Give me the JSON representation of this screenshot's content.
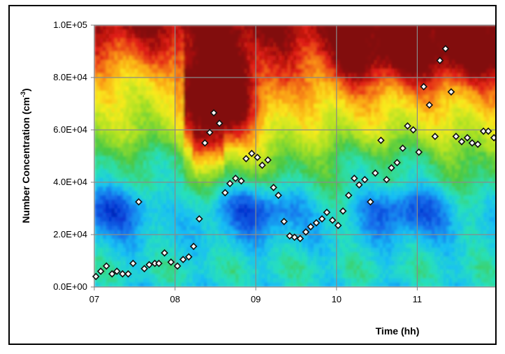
{
  "chart_data": {
    "type": "scatter",
    "title": "",
    "xlabel": "Time (hh)",
    "ylabel_main": "Number Concentration (cm",
    "ylabel_sup": "-3",
    "ylabel_end": ")",
    "xlim": [
      7,
      12
    ],
    "ylim": [
      0,
      100000
    ],
    "x_tick_labels": [
      "07",
      "08",
      "09",
      "10",
      "11"
    ],
    "x_ticks": [
      7,
      8,
      9,
      10,
      11
    ],
    "y_tick_labels": [
      "0.0E+00",
      "2.0E+04",
      "4.0E+04",
      "6.0E+04",
      "8.0E+04",
      "1.0E+05"
    ],
    "y_ticks": [
      0,
      20000,
      40000,
      60000,
      80000,
      100000
    ],
    "grid": true,
    "background": "contour heatmap (blue low - red high)",
    "marker": "diamond",
    "series": [
      {
        "x": [
          7.02,
          7.08,
          7.15,
          7.22,
          7.28,
          7.35,
          7.42,
          7.48,
          7.55,
          7.62,
          7.68,
          7.75,
          7.8,
          7.87,
          7.95,
          8.03,
          8.1,
          8.17,
          8.23,
          8.3,
          8.37,
          8.43,
          8.48,
          8.55,
          8.62,
          8.68,
          8.75,
          8.82,
          8.88,
          8.95,
          9.02,
          9.08,
          9.15,
          9.22,
          9.28,
          9.35,
          9.42,
          9.48,
          9.55,
          9.62,
          9.68,
          9.75,
          9.82,
          9.88,
          9.95,
          10.02,
          10.08,
          10.15,
          10.22,
          10.28,
          10.35,
          10.42,
          10.48,
          10.55,
          10.62,
          10.68,
          10.75,
          10.82,
          10.88,
          10.95,
          11.02,
          11.08,
          11.15,
          11.22,
          11.28,
          11.35,
          11.42,
          11.48,
          11.55,
          11.62,
          11.68,
          11.75,
          11.82,
          11.88,
          11.95
        ],
        "y": [
          4000,
          6000,
          8000,
          5000,
          6000,
          5000,
          5000,
          9000,
          32500,
          7000,
          8500,
          9000,
          9000,
          13000,
          9500,
          8000,
          10500,
          11500,
          15500,
          26000,
          55000,
          59000,
          66500,
          62500,
          36000,
          39500,
          41500,
          40500,
          49000,
          51000,
          49500,
          46500,
          48500,
          38000,
          35000,
          25000,
          19500,
          19000,
          18500,
          21000,
          23000,
          24500,
          26000,
          28500,
          25500,
          23500,
          29000,
          35000,
          41500,
          39000,
          41000,
          32500,
          43500,
          56000,
          41000,
          45500,
          47500,
          53000,
          61500,
          60000,
          51500,
          76500,
          69500,
          57500,
          86500,
          91000,
          74500,
          57500,
          55500,
          57000,
          55000,
          54500,
          59500,
          59500,
          57000
        ]
      }
    ]
  }
}
